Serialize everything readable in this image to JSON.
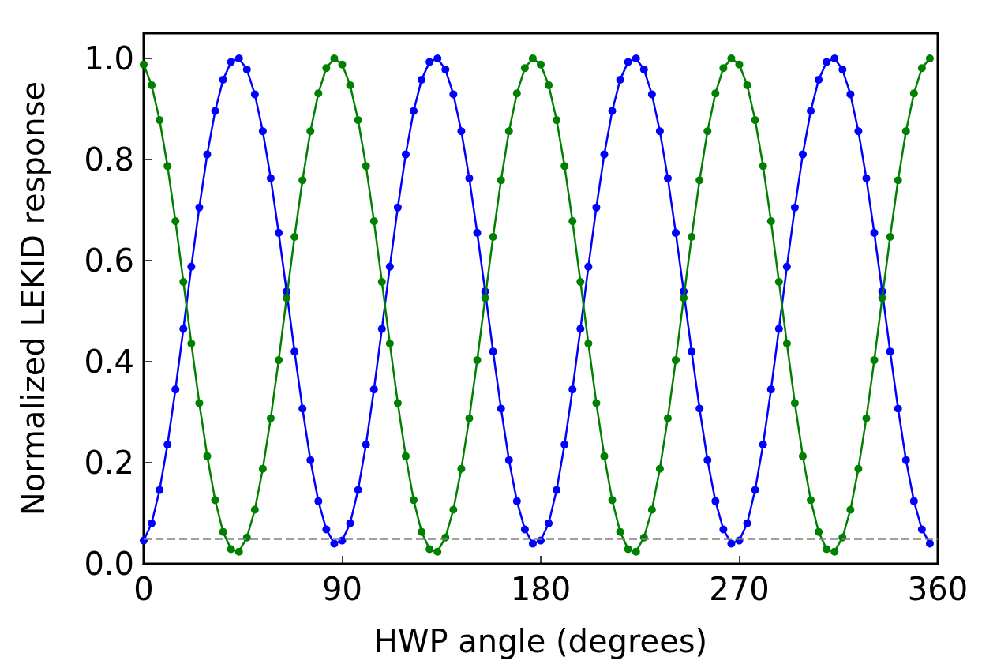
{
  "chart_data": {
    "type": "line",
    "xlabel": "HWP angle (degrees)",
    "ylabel": "Normalized LEKID response",
    "x": [
      0,
      3.6,
      7.2,
      10.8,
      14.4,
      18,
      21.6,
      25.2,
      28.8,
      32.4,
      36,
      39.6,
      43.2,
      46.8,
      50.4,
      54,
      57.6,
      61.2,
      64.8,
      68.4,
      72,
      75.6,
      79.2,
      82.8,
      86.4,
      90,
      93.6,
      97.2,
      100.8,
      104.4,
      108,
      111.6,
      115.2,
      118.8,
      122.4,
      126,
      129.6,
      133.2,
      136.8,
      140.4,
      144,
      147.6,
      151.2,
      154.8,
      158.4,
      162,
      165.6,
      169.2,
      172.8,
      176.4,
      180,
      183.6,
      187.2,
      190.8,
      194.4,
      198,
      201.6,
      205.2,
      208.8,
      212.4,
      216,
      219.6,
      223.2,
      226.8,
      230.4,
      234,
      237.6,
      241.2,
      244.8,
      248.4,
      252,
      255.6,
      259.2,
      262.8,
      266.4,
      270,
      273.6,
      277.2,
      280.8,
      284.4,
      288,
      291.6,
      295.2,
      298.8,
      302.4,
      306,
      309.6,
      313.2,
      316.8,
      320.4,
      324,
      327.6,
      331.2,
      334.8,
      338.4,
      342,
      345.6,
      349.2,
      352.8,
      356.4
    ],
    "series": [
      {
        "color": "#0000ff",
        "values": [
          0.046,
          0.08,
          0.146,
          0.236,
          0.345,
          0.465,
          0.588,
          0.705,
          0.81,
          0.896,
          0.958,
          0.993,
          1.0,
          0.978,
          0.929,
          0.856,
          0.763,
          0.655,
          0.539,
          0.42,
          0.307,
          0.205,
          0.124,
          0.068,
          0.04,
          0.046,
          0.08,
          0.146,
          0.236,
          0.345,
          0.465,
          0.588,
          0.705,
          0.81,
          0.896,
          0.958,
          0.993,
          1.0,
          0.978,
          0.929,
          0.856,
          0.763,
          0.655,
          0.539,
          0.42,
          0.307,
          0.205,
          0.124,
          0.068,
          0.04,
          0.046,
          0.08,
          0.146,
          0.236,
          0.345,
          0.465,
          0.588,
          0.705,
          0.81,
          0.896,
          0.958,
          0.993,
          1.0,
          0.978,
          0.929,
          0.856,
          0.763,
          0.655,
          0.539,
          0.42,
          0.307,
          0.205,
          0.124,
          0.068,
          0.04,
          0.046,
          0.08,
          0.146,
          0.236,
          0.345,
          0.465,
          0.588,
          0.705,
          0.81,
          0.896,
          0.958,
          0.993,
          1.0,
          0.978,
          0.929,
          0.856,
          0.763,
          0.655,
          0.539,
          0.42,
          0.307,
          0.205,
          0.124,
          0.068,
          0.04
        ]
      },
      {
        "color": "#008000",
        "values": [
          0.988,
          0.947,
          0.878,
          0.787,
          0.678,
          0.558,
          0.436,
          0.318,
          0.213,
          0.126,
          0.063,
          0.029,
          0.024,
          0.052,
          0.107,
          0.188,
          0.288,
          0.403,
          0.526,
          0.647,
          0.759,
          0.856,
          0.931,
          0.981,
          1.0,
          0.988,
          0.947,
          0.878,
          0.787,
          0.678,
          0.558,
          0.436,
          0.318,
          0.213,
          0.126,
          0.063,
          0.029,
          0.024,
          0.052,
          0.107,
          0.188,
          0.288,
          0.403,
          0.526,
          0.647,
          0.759,
          0.856,
          0.931,
          0.981,
          1.0,
          0.988,
          0.947,
          0.878,
          0.787,
          0.678,
          0.558,
          0.436,
          0.318,
          0.213,
          0.126,
          0.063,
          0.029,
          0.024,
          0.052,
          0.107,
          0.188,
          0.288,
          0.403,
          0.526,
          0.647,
          0.759,
          0.856,
          0.931,
          0.981,
          1.0,
          0.988,
          0.947,
          0.878,
          0.787,
          0.678,
          0.558,
          0.436,
          0.318,
          0.213,
          0.126,
          0.063,
          0.029,
          0.024,
          0.052,
          0.107,
          0.188,
          0.288,
          0.403,
          0.526,
          0.647,
          0.759,
          0.856,
          0.931,
          0.981,
          1.0
        ]
      }
    ],
    "xlim": [
      0,
      360
    ],
    "xticks": [
      0,
      90,
      180,
      270,
      360
    ],
    "ylim": [
      0,
      1.05
    ],
    "yticks": [
      {
        "value": 0,
        "label": "0.0"
      },
      {
        "value": 0.2,
        "label": "0.2"
      },
      {
        "value": 0.4,
        "label": "0.4"
      },
      {
        "value": 0.6,
        "label": "0.6"
      },
      {
        "value": 0.8,
        "label": "0.8"
      },
      {
        "value": 1.0,
        "label": "1.0"
      }
    ],
    "ref_lines": [
      {
        "axis": "y",
        "value": 0.05,
        "color": "#808080",
        "line_style": "dashed"
      }
    ],
    "marker": "circle",
    "line_style": "solid"
  }
}
